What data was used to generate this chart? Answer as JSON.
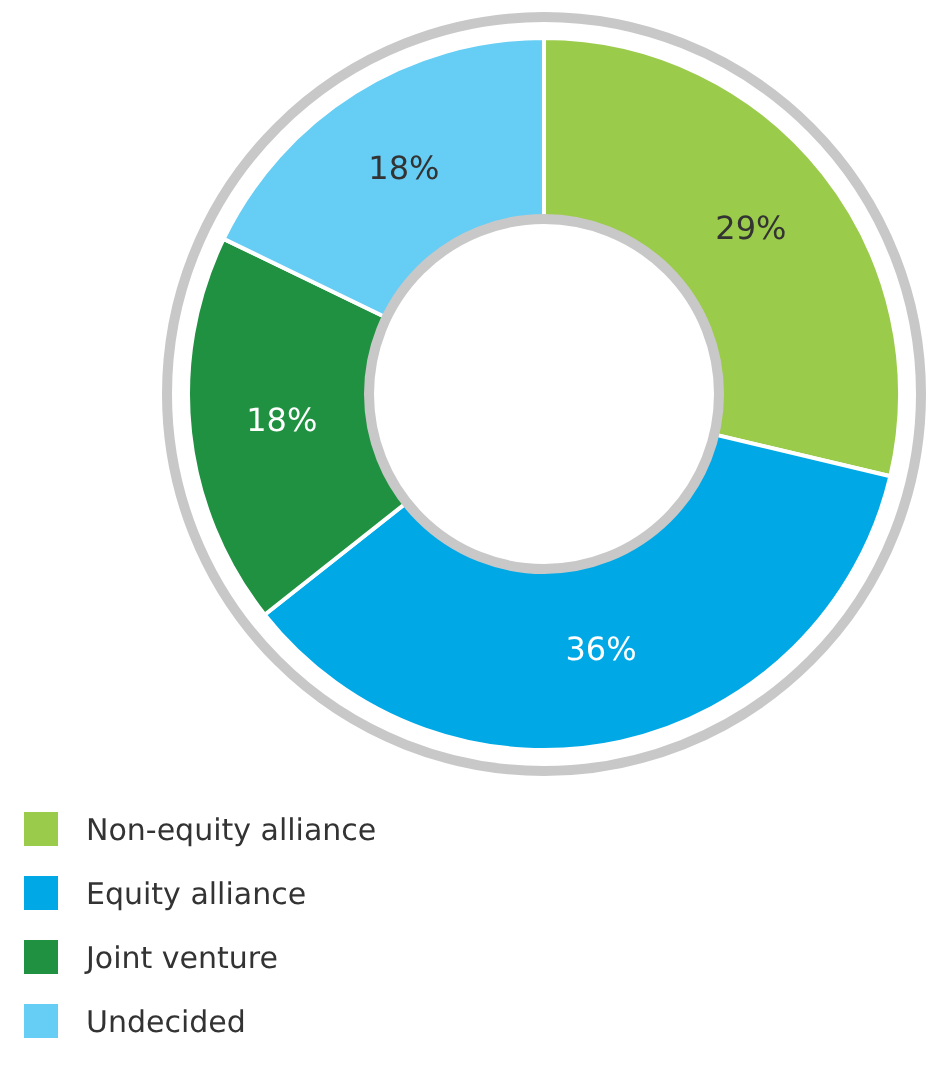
{
  "chart_data": {
    "type": "donut",
    "categories": [
      "Non-equity alliance",
      "Equity alliance",
      "Joint venture",
      "Undecided"
    ],
    "values": [
      29,
      36,
      18,
      18
    ],
    "colors": [
      "#9bcb4b",
      "#00a9e6",
      "#1f9141",
      "#66cdf4"
    ],
    "value_labels": [
      "29%",
      "36%",
      "18%",
      "18%"
    ],
    "legend": "bottom left"
  }
}
